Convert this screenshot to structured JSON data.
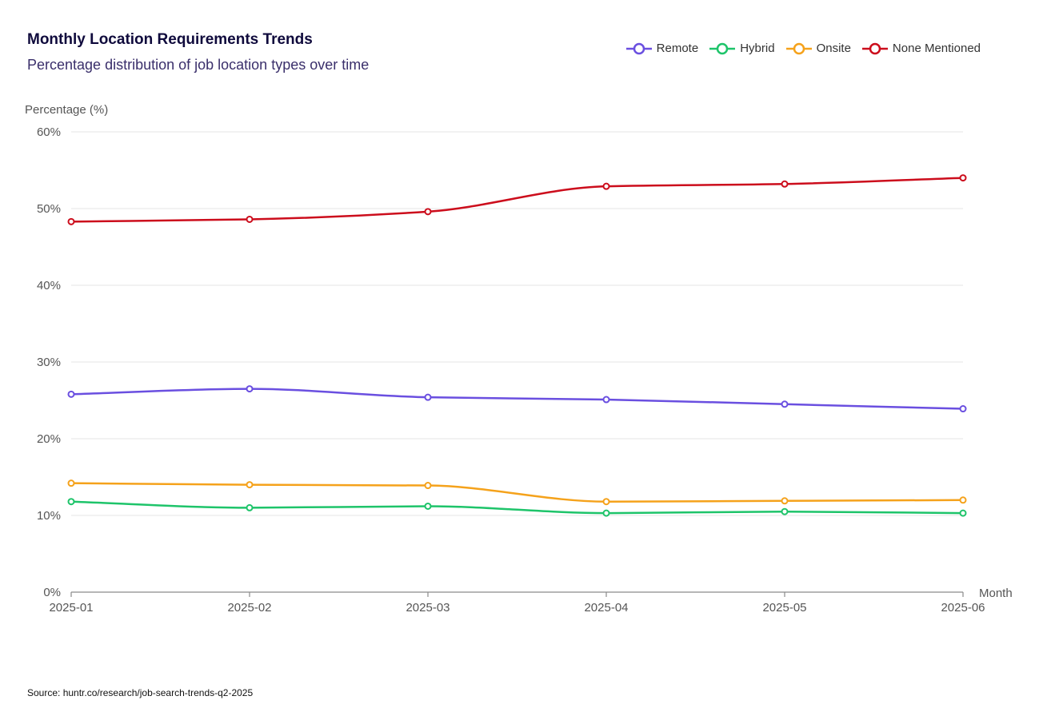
{
  "chart_data": {
    "type": "line",
    "title": "Monthly Location Requirements Trends",
    "subtitle": "Percentage distribution of job location types over time",
    "xlabel": "Month",
    "ylabel": "Percentage (%)",
    "ylim": [
      0,
      60
    ],
    "yticks": [
      "0%",
      "10%",
      "20%",
      "30%",
      "40%",
      "50%",
      "60%"
    ],
    "ytick_values": [
      0,
      10,
      20,
      30,
      40,
      50,
      60
    ],
    "x": [
      "2025-01",
      "2025-02",
      "2025-03",
      "2025-04",
      "2025-05",
      "2025-06"
    ],
    "grid": true,
    "legend_position": "top-right",
    "series": [
      {
        "name": "Remote",
        "color": "#6a4fe0",
        "values": [
          25.8,
          26.5,
          25.4,
          25.1,
          24.5,
          23.9
        ]
      },
      {
        "name": "Hybrid",
        "color": "#1ec46a",
        "values": [
          11.8,
          11.0,
          11.2,
          10.3,
          10.5,
          10.3
        ]
      },
      {
        "name": "Onsite",
        "color": "#f5a21b",
        "values": [
          14.2,
          14.0,
          13.9,
          11.8,
          11.9,
          12.0
        ]
      },
      {
        "name": "None Mentioned",
        "color": "#cc0d1c",
        "values": [
          48.3,
          48.6,
          49.6,
          52.9,
          53.2,
          54.0
        ]
      }
    ]
  },
  "footer": {
    "source": "Source: huntr.co/research/job-search-trends-q2-2025"
  }
}
